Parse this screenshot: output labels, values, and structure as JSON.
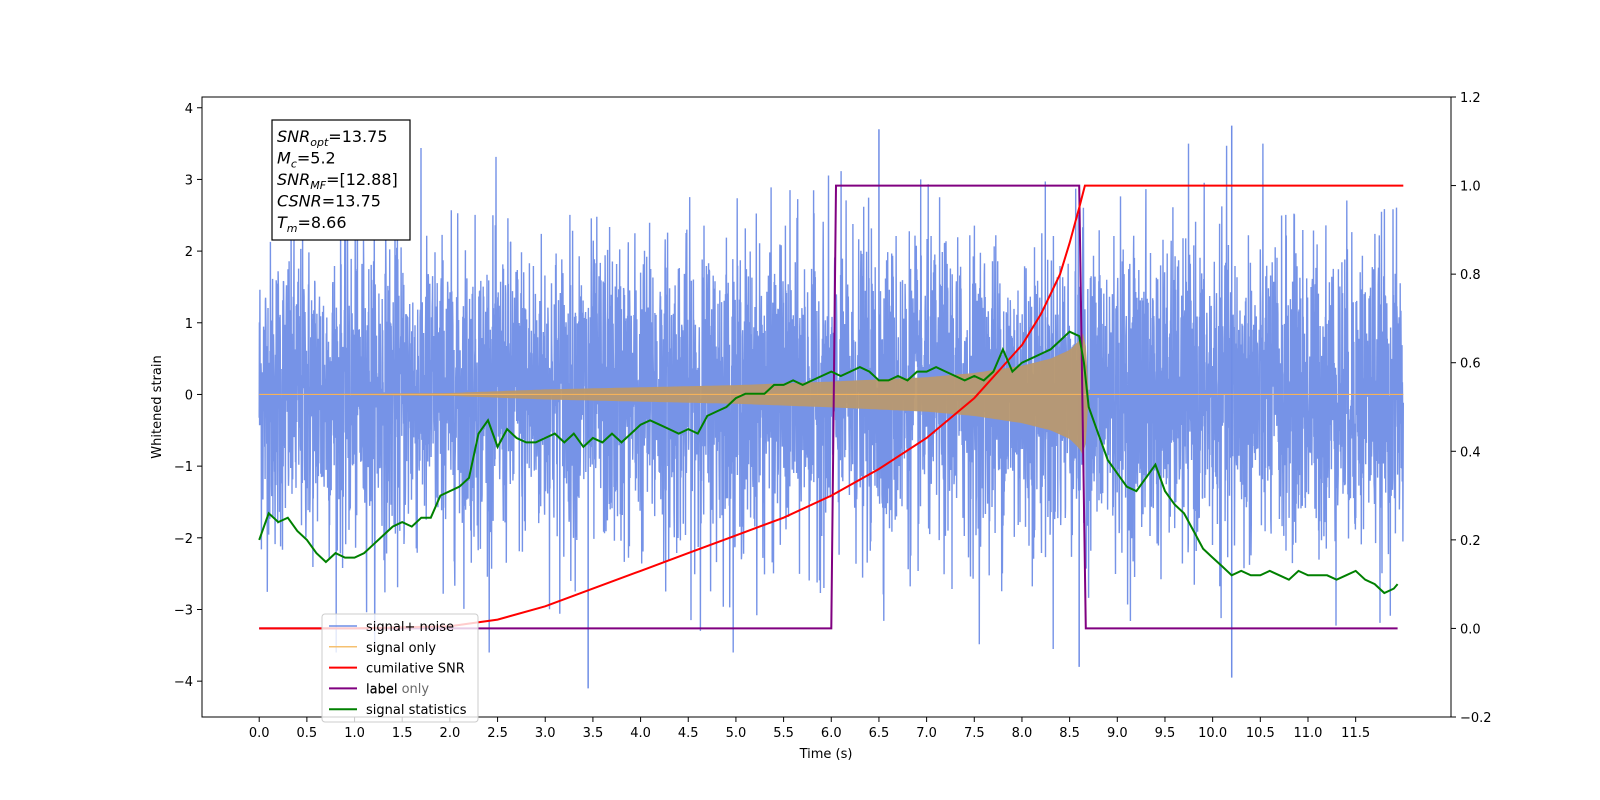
{
  "chart_data": {
    "type": "line",
    "xlabel": "Time (s)",
    "ylabel": "Whitened strain",
    "xlim": [
      -0.6,
      12.5
    ],
    "ylim": [
      -4.5,
      4.15
    ],
    "y2lim": [
      -0.2,
      1.2
    ],
    "x_ticks": [
      "0.0",
      "0.5",
      "1.0",
      "1.5",
      "2.0",
      "2.5",
      "3.0",
      "3.5",
      "4.0",
      "4.5",
      "5.0",
      "5.5",
      "6.0",
      "6.5",
      "7.0",
      "7.5",
      "8.0",
      "8.5",
      "9.0",
      "9.5",
      "10.0",
      "10.5",
      "11.0",
      "11.5"
    ],
    "y_ticks": [
      "−4",
      "−3",
      "−2",
      "−1",
      "0",
      "1",
      "2",
      "3",
      "4"
    ],
    "y2_ticks": [
      "−0.2",
      "0.0",
      "0.2",
      "0.4",
      "0.6",
      "0.8",
      "1.0",
      "1.2"
    ],
    "legend_placement": "lower-left",
    "annotation": [
      {
        "name": "SNR",
        "sub": "opt",
        "value": "=13.75"
      },
      {
        "name": "M",
        "sub": "c",
        "value": "=5.2"
      },
      {
        "name": "SNR",
        "sub": "MF",
        "value": "=[12.88]"
      },
      {
        "name": "CSNR",
        "sub": "",
        "value": "=13.75"
      },
      {
        "name": "T",
        "sub": "m",
        "value": "=8.66"
      }
    ],
    "series": [
      {
        "name": "signal+ noise",
        "axis": "left",
        "color": "#6f8de6",
        "description_range": [
          0.0,
          12.0
        ],
        "noise_sigma": 1.05,
        "note_peaks": [
          [
            3.45,
            -4.1
          ],
          [
            10.2,
            3.75
          ],
          [
            10.2,
            -3.95
          ],
          [
            8.6,
            -3.8
          ],
          [
            6.5,
            3.7
          ]
        ]
      },
      {
        "name": "signal only",
        "axis": "left",
        "color": "#f5b25a",
        "envelope": {
          "x": [
            0.0,
            2.0,
            3.0,
            4.0,
            5.0,
            6.0,
            7.0,
            7.5,
            8.0,
            8.3,
            8.5,
            8.6,
            8.66,
            8.7,
            12.0
          ],
          "amp": [
            0.0,
            0.02,
            0.07,
            0.1,
            0.13,
            0.18,
            0.24,
            0.3,
            0.4,
            0.5,
            0.62,
            0.75,
            0.9,
            0.0,
            0.0
          ]
        }
      },
      {
        "name": "cumilative SNR",
        "axis": "right",
        "color": "#ff0000",
        "x": [
          0.0,
          1.0,
          2.0,
          2.5,
          3.0,
          3.5,
          4.0,
          4.5,
          5.0,
          5.5,
          6.0,
          6.5,
          7.0,
          7.5,
          8.0,
          8.2,
          8.4,
          8.5,
          8.6,
          8.66,
          8.67,
          12.0
        ],
        "values": [
          0.0,
          0.0,
          0.005,
          0.02,
          0.05,
          0.09,
          0.13,
          0.17,
          0.21,
          0.25,
          0.3,
          0.36,
          0.43,
          0.52,
          0.64,
          0.71,
          0.8,
          0.87,
          0.95,
          1.0,
          1.0,
          1.0
        ]
      },
      {
        "name": "label",
        "axis": "right",
        "color": "#800080",
        "x": [
          0.0,
          6.0,
          6.05,
          8.6,
          8.67,
          11.94
        ],
        "values": [
          0.0,
          0.0,
          1.0,
          1.0,
          0.0,
          0.0
        ]
      },
      {
        "name": "label only",
        "axis": "right",
        "color": "#bbbbbb",
        "x": [],
        "values": []
      },
      {
        "name": "signal statistics",
        "axis": "right",
        "color": "#008000",
        "x": [
          0.0,
          0.1,
          0.2,
          0.3,
          0.4,
          0.5,
          0.6,
          0.7,
          0.8,
          0.9,
          1.0,
          1.1,
          1.2,
          1.3,
          1.4,
          1.5,
          1.6,
          1.7,
          1.8,
          1.9,
          2.0,
          2.1,
          2.2,
          2.3,
          2.4,
          2.5,
          2.6,
          2.7,
          2.8,
          2.9,
          3.0,
          3.1,
          3.2,
          3.3,
          3.4,
          3.5,
          3.6,
          3.7,
          3.8,
          3.9,
          4.0,
          4.1,
          4.2,
          4.3,
          4.4,
          4.5,
          4.6,
          4.7,
          4.8,
          4.9,
          5.0,
          5.1,
          5.2,
          5.3,
          5.4,
          5.5,
          5.6,
          5.7,
          5.8,
          5.9,
          6.0,
          6.1,
          6.2,
          6.3,
          6.4,
          6.5,
          6.6,
          6.7,
          6.8,
          6.9,
          7.0,
          7.1,
          7.2,
          7.3,
          7.4,
          7.5,
          7.6,
          7.7,
          7.8,
          7.9,
          8.0,
          8.1,
          8.2,
          8.3,
          8.4,
          8.5,
          8.6,
          8.65,
          8.7,
          8.8,
          8.9,
          9.0,
          9.1,
          9.2,
          9.3,
          9.4,
          9.5,
          9.6,
          9.7,
          9.8,
          9.9,
          10.0,
          10.1,
          10.2,
          10.3,
          10.4,
          10.5,
          10.6,
          10.7,
          10.8,
          10.9,
          11.0,
          11.1,
          11.2,
          11.3,
          11.4,
          11.5,
          11.6,
          11.7,
          11.8,
          11.9,
          11.94
        ],
        "values": [
          0.2,
          0.26,
          0.24,
          0.25,
          0.22,
          0.2,
          0.17,
          0.15,
          0.17,
          0.16,
          0.16,
          0.17,
          0.19,
          0.21,
          0.23,
          0.24,
          0.23,
          0.25,
          0.25,
          0.3,
          0.31,
          0.32,
          0.34,
          0.44,
          0.47,
          0.41,
          0.45,
          0.43,
          0.42,
          0.42,
          0.43,
          0.44,
          0.42,
          0.44,
          0.41,
          0.43,
          0.42,
          0.44,
          0.42,
          0.44,
          0.46,
          0.47,
          0.46,
          0.45,
          0.44,
          0.45,
          0.44,
          0.48,
          0.49,
          0.5,
          0.52,
          0.53,
          0.53,
          0.53,
          0.55,
          0.55,
          0.56,
          0.55,
          0.56,
          0.57,
          0.58,
          0.57,
          0.58,
          0.59,
          0.58,
          0.56,
          0.56,
          0.57,
          0.56,
          0.58,
          0.58,
          0.59,
          0.58,
          0.57,
          0.56,
          0.57,
          0.56,
          0.58,
          0.63,
          0.58,
          0.6,
          0.61,
          0.62,
          0.63,
          0.65,
          0.67,
          0.66,
          0.6,
          0.5,
          0.44,
          0.38,
          0.35,
          0.32,
          0.31,
          0.34,
          0.37,
          0.31,
          0.28,
          0.26,
          0.22,
          0.18,
          0.16,
          0.14,
          0.12,
          0.13,
          0.12,
          0.12,
          0.13,
          0.12,
          0.11,
          0.13,
          0.12,
          0.12,
          0.12,
          0.11,
          0.12,
          0.13,
          0.11,
          0.1,
          0.08,
          0.09,
          0.1
        ]
      }
    ]
  }
}
